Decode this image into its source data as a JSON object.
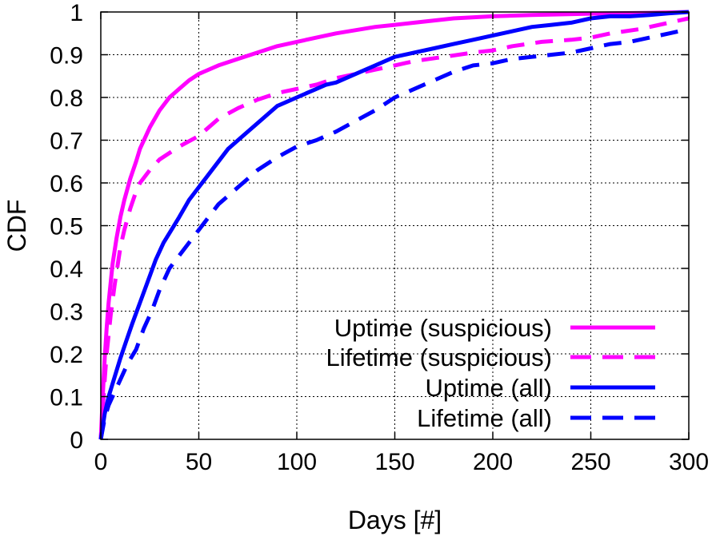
{
  "chart_data": {
    "type": "line",
    "xlabel": "Days [#]",
    "ylabel": "CDF",
    "xlim": [
      0,
      300
    ],
    "ylim": [
      0,
      1
    ],
    "x_ticks": [
      0,
      50,
      100,
      150,
      200,
      250,
      300
    ],
    "y_ticks": [
      0,
      0.1,
      0.2,
      0.3,
      0.4,
      0.5,
      0.6,
      0.7,
      0.8,
      0.9,
      1
    ],
    "grid": true,
    "legend_position": "bottom-right",
    "series": [
      {
        "name": "Uptime (suspicious)",
        "color": "#ff00ff",
        "dash": "solid",
        "x": [
          0,
          1,
          2,
          3,
          4,
          6,
          8,
          10,
          12,
          15,
          18,
          20,
          25,
          30,
          35,
          40,
          45,
          50,
          60,
          70,
          80,
          90,
          100,
          110,
          120,
          140,
          150,
          160,
          180,
          200,
          220,
          250,
          280,
          300
        ],
        "y": [
          0,
          0.1,
          0.19,
          0.26,
          0.32,
          0.41,
          0.47,
          0.52,
          0.56,
          0.61,
          0.65,
          0.68,
          0.73,
          0.77,
          0.8,
          0.82,
          0.84,
          0.855,
          0.875,
          0.89,
          0.905,
          0.92,
          0.93,
          0.94,
          0.95,
          0.965,
          0.97,
          0.975,
          0.985,
          0.99,
          0.993,
          0.996,
          0.998,
          1.0
        ]
      },
      {
        "name": "Lifetime (suspicious)",
        "color": "#ff00ff",
        "dash": "dashed",
        "x": [
          0,
          1,
          2,
          3,
          5,
          7,
          10,
          12,
          15,
          18,
          20,
          25,
          30,
          40,
          50,
          60,
          70,
          80,
          90,
          100,
          110,
          120,
          130,
          140,
          150,
          160,
          175,
          190,
          200,
          210,
          225,
          240,
          250,
          260,
          275,
          290,
          300
        ],
        "y": [
          0,
          0.07,
          0.14,
          0.2,
          0.29,
          0.36,
          0.45,
          0.49,
          0.54,
          0.58,
          0.6,
          0.63,
          0.655,
          0.685,
          0.71,
          0.75,
          0.775,
          0.795,
          0.81,
          0.82,
          0.83,
          0.845,
          0.855,
          0.865,
          0.875,
          0.885,
          0.895,
          0.905,
          0.91,
          0.92,
          0.93,
          0.935,
          0.94,
          0.95,
          0.96,
          0.975,
          0.985
        ]
      },
      {
        "name": "Uptime (all)",
        "color": "#0000ff",
        "dash": "solid",
        "x": [
          0,
          2,
          4,
          6,
          8,
          10,
          13,
          16,
          20,
          24,
          28,
          32,
          36,
          40,
          45,
          50,
          55,
          60,
          65,
          70,
          75,
          80,
          85,
          90,
          95,
          100,
          105,
          110,
          115,
          120,
          130,
          140,
          150,
          160,
          170,
          180,
          190,
          200,
          210,
          220,
          230,
          240,
          250,
          260,
          270,
          280,
          290,
          300
        ],
        "y": [
          0,
          0.06,
          0.1,
          0.13,
          0.16,
          0.19,
          0.23,
          0.27,
          0.32,
          0.37,
          0.42,
          0.46,
          0.49,
          0.52,
          0.56,
          0.59,
          0.62,
          0.65,
          0.68,
          0.7,
          0.72,
          0.74,
          0.76,
          0.78,
          0.79,
          0.8,
          0.81,
          0.82,
          0.83,
          0.835,
          0.855,
          0.875,
          0.895,
          0.905,
          0.915,
          0.925,
          0.935,
          0.945,
          0.955,
          0.965,
          0.97,
          0.975,
          0.985,
          0.99,
          0.99,
          0.993,
          0.997,
          1.0
        ]
      },
      {
        "name": "Lifetime (all)",
        "color": "#0000ff",
        "dash": "dashed",
        "x": [
          0,
          2,
          4,
          6,
          8,
          10,
          14,
          18,
          22,
          26,
          30,
          35,
          40,
          45,
          50,
          55,
          60,
          65,
          70,
          75,
          80,
          90,
          100,
          110,
          120,
          130,
          140,
          150,
          160,
          170,
          180,
          190,
          200,
          210,
          220,
          230,
          240,
          250,
          260,
          270,
          280,
          290,
          300
        ],
        "y": [
          0,
          0.05,
          0.08,
          0.1,
          0.12,
          0.14,
          0.18,
          0.21,
          0.26,
          0.3,
          0.35,
          0.4,
          0.43,
          0.46,
          0.49,
          0.52,
          0.55,
          0.57,
          0.59,
          0.61,
          0.63,
          0.66,
          0.685,
          0.7,
          0.72,
          0.745,
          0.77,
          0.8,
          0.82,
          0.84,
          0.86,
          0.875,
          0.88,
          0.89,
          0.895,
          0.9,
          0.905,
          0.915,
          0.925,
          0.93,
          0.94,
          0.95,
          0.96
        ]
      }
    ]
  }
}
